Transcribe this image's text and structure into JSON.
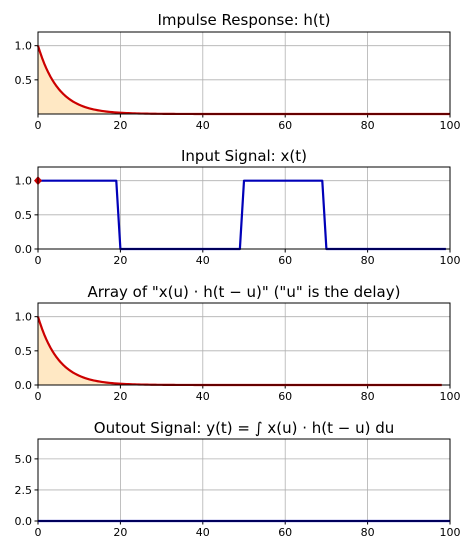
{
  "chart_data": [
    {
      "type": "area",
      "title": "Impulse Response: h(t)",
      "xlim": [
        0,
        100
      ],
      "ylim": [
        0,
        1.2
      ],
      "xticks": [
        "0",
        "20",
        "40",
        "60",
        "80",
        "100"
      ],
      "yticks": [
        "0.5",
        "1.0"
      ],
      "grid": true,
      "series": [
        {
          "kind": "decay",
          "amplitude": 1.0,
          "rate": 0.2,
          "x_start": 0,
          "x_end": 100,
          "color": "#cc0000",
          "fill": "#ffe8c4"
        }
      ]
    },
    {
      "type": "line",
      "title": "Input Signal:  x(t)",
      "xlim": [
        0,
        100
      ],
      "ylim": [
        0,
        1.2
      ],
      "xticks": [
        "0",
        "20",
        "40",
        "60",
        "80",
        "100"
      ],
      "yticks": [
        "0.0",
        "0.5",
        "1.0"
      ],
      "grid": true,
      "series": [
        {
          "x": [
            0,
            19,
            20,
            49,
            50,
            69,
            70,
            99
          ],
          "y": [
            1,
            1,
            0,
            0,
            1,
            1,
            0,
            0
          ],
          "color": "#0000b8"
        }
      ],
      "marker": {
        "x": 0,
        "y": 1.0,
        "color": "#cc0000"
      }
    },
    {
      "type": "area",
      "title": "Array of  \"x(u) · h(t − u)\"   (\"u\" is the delay)",
      "xlim": [
        0,
        100
      ],
      "ylim": [
        0,
        1.2
      ],
      "xticks": [
        "0",
        "20",
        "40",
        "60",
        "80",
        "100"
      ],
      "yticks": [
        "0.0",
        "0.5",
        "1.0"
      ],
      "grid": true,
      "series": [
        {
          "kind": "decay",
          "amplitude": 1.0,
          "rate": 0.2,
          "x_start": 0,
          "x_end": 98,
          "color": "#cc0000",
          "fill": "#ffe8c4"
        }
      ]
    },
    {
      "type": "line",
      "title": "Outout Signal:  y(t) = ∫ x(u) · h(t − u) du",
      "xlim": [
        0,
        100
      ],
      "ylim": [
        0,
        6.6
      ],
      "xticks": [
        "0",
        "20",
        "40",
        "60",
        "80",
        "100"
      ],
      "yticks": [
        "0.0",
        "2.5",
        "5.0"
      ],
      "grid": true,
      "series": [
        {
          "x": [
            0,
            100
          ],
          "y": [
            0,
            0
          ],
          "color": "#0000b8"
        }
      ]
    }
  ]
}
